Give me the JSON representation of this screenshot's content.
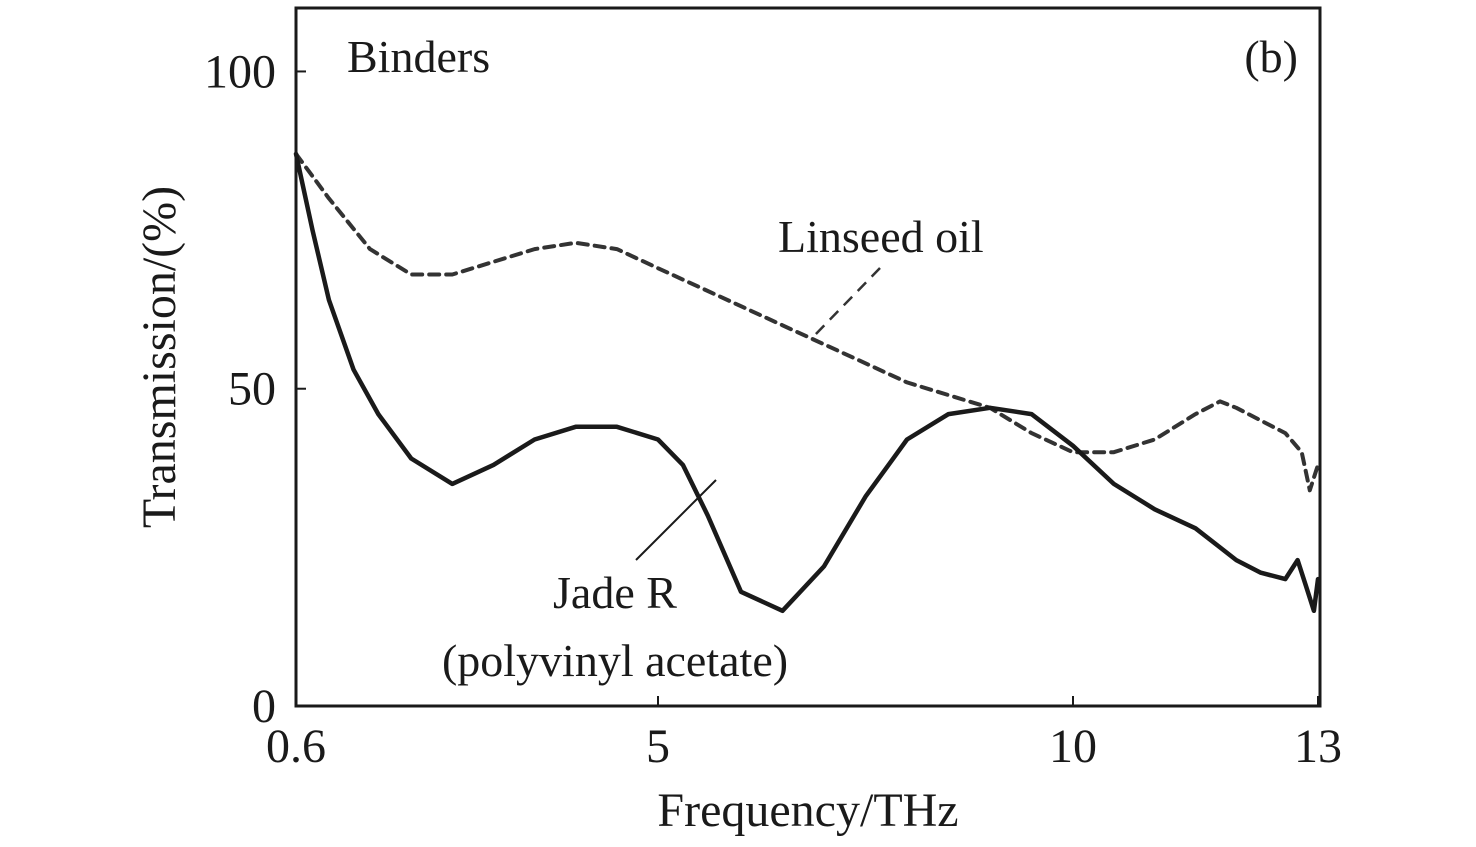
{
  "chart_data": {
    "type": "line",
    "title": "",
    "panel_label": "(b)",
    "group_label": "Binders",
    "xlabel": "Frequency/THz",
    "ylabel": "Transmission/(%)",
    "xlim": [
      0.6,
      13
    ],
    "ylim": [
      0,
      110
    ],
    "x_ticks": [
      0.6,
      5,
      10,
      13
    ],
    "x_tick_labels": [
      "0.6",
      "5",
      "10",
      "13"
    ],
    "y_ticks": [
      0,
      50,
      100
    ],
    "y_tick_labels": [
      "0",
      "50",
      "100"
    ],
    "grid": false,
    "legend": "none",
    "series": [
      {
        "name": "Linseed oil",
        "style": "dashed",
        "color": "#333333",
        "x": [
          0.6,
          1.0,
          1.5,
          2.0,
          2.5,
          3.0,
          3.5,
          4.0,
          4.5,
          5.0,
          5.5,
          6.0,
          6.5,
          7.0,
          7.5,
          8.0,
          8.5,
          9.0,
          9.5,
          10.0,
          10.5,
          11.0,
          11.5,
          11.8,
          12.0,
          12.3,
          12.6,
          12.8,
          12.9,
          13.0
        ],
        "y": [
          87,
          80,
          72,
          68,
          68,
          70,
          72,
          73,
          72,
          69,
          66,
          63,
          60,
          57,
          54,
          51,
          49,
          47,
          43,
          40,
          40,
          42,
          46,
          48,
          47,
          45,
          43,
          40,
          34,
          38
        ]
      },
      {
        "name": "Jade R",
        "style": "solid",
        "color": "#1a1a1a",
        "x": [
          0.6,
          0.8,
          1.0,
          1.3,
          1.6,
          2.0,
          2.5,
          3.0,
          3.5,
          4.0,
          4.5,
          5.0,
          5.3,
          5.6,
          6.0,
          6.5,
          7.0,
          7.5,
          8.0,
          8.5,
          9.0,
          9.5,
          10.0,
          10.5,
          11.0,
          11.5,
          11.8,
          12.0,
          12.3,
          12.6,
          12.75,
          12.85,
          12.95,
          13.0
        ],
        "y": [
          87,
          75,
          64,
          53,
          46,
          39,
          35,
          38,
          42,
          44,
          44,
          42,
          38,
          30,
          18,
          15,
          22,
          33,
          42,
          46,
          47,
          46,
          41,
          35,
          31,
          28,
          25,
          23,
          21,
          20,
          23,
          19,
          15,
          20
        ]
      }
    ],
    "annotations": [
      {
        "text": "Linseed oil",
        "points_to_series": "Linseed oil"
      },
      {
        "text": "Jade R",
        "text_line2": "(polyvinyl acetate)",
        "points_to_series": "Jade R"
      }
    ]
  }
}
